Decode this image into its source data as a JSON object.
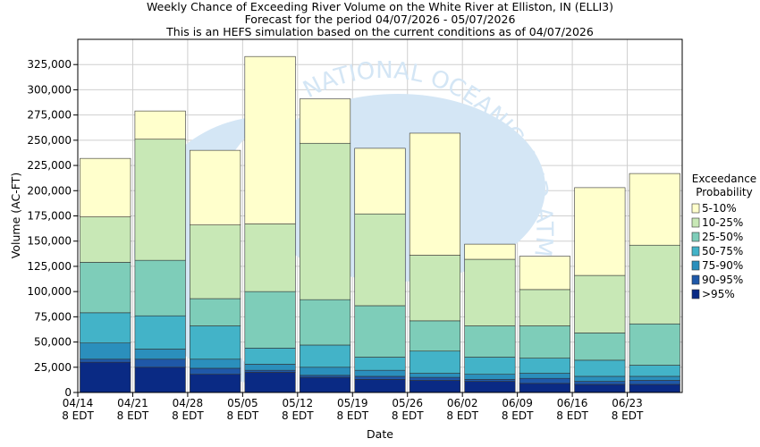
{
  "chart_data": {
    "type": "bar",
    "stacked": true,
    "title": [
      "Weekly Chance of Exceeding River Volume on the White River at Elliston, IN (ELLI3)",
      "Forecast for the period 04/07/2026 - 05/07/2026",
      "This is an HEFS simulation based on the current conditions as of 04/07/2026"
    ],
    "watermark": "NATIONAL OCEANIC AND ATMOSPHERIC ADMINISTRATION",
    "xlabel": "Date",
    "ylabel": "Volume (AC-FT)",
    "ylim": [
      0,
      350000
    ],
    "yticks": [
      0,
      25000,
      50000,
      75000,
      100000,
      125000,
      150000,
      175000,
      200000,
      225000,
      250000,
      275000,
      300000,
      325000
    ],
    "ytick_labels": [
      "0",
      "25,000",
      "50,000",
      "75,000",
      "100,000",
      "125,000",
      "150,000",
      "175,000",
      "200,000",
      "225,000",
      "250,000",
      "275,000",
      "300,000",
      "325,000"
    ],
    "xtick_labels": [
      [
        "04/14",
        "8 EDT"
      ],
      [
        "04/21",
        "8 EDT"
      ],
      [
        "04/28",
        "8 EDT"
      ],
      [
        "05/05",
        "8 EDT"
      ],
      [
        "05/12",
        "8 EDT"
      ],
      [
        "05/19",
        "8 EDT"
      ],
      [
        "05/26",
        "8 EDT"
      ],
      [
        "06/02",
        "8 EDT"
      ],
      [
        "06/09",
        "8 EDT"
      ],
      [
        "06/16",
        "8 EDT"
      ],
      [
        "06/23",
        "8 EDT"
      ]
    ],
    "grid": true,
    "legend_title": [
      "Exceedance",
      "Probability"
    ],
    "legend_position": "right",
    "bars": [
      {
        "bounds": [
          30000,
          33000,
          49000,
          79000,
          129000,
          174000,
          232000
        ]
      },
      {
        "bounds": [
          25000,
          33000,
          43000,
          76000,
          131000,
          251000,
          279000
        ]
      },
      {
        "bounds": [
          18000,
          24000,
          33000,
          66000,
          93000,
          166000,
          240000
        ]
      },
      {
        "bounds": [
          20000,
          22000,
          28000,
          44000,
          100000,
          167000,
          333000
        ]
      },
      {
        "bounds": [
          15000,
          17000,
          25000,
          47000,
          92000,
          247000,
          291000
        ]
      },
      {
        "bounds": [
          13000,
          16000,
          22000,
          35000,
          86000,
          177000,
          242000
        ]
      },
      {
        "bounds": [
          12000,
          15000,
          19000,
          41000,
          71000,
          136000,
          257000
        ]
      },
      {
        "bounds": [
          11000,
          13000,
          18000,
          35000,
          66000,
          132000,
          147000
        ]
      },
      {
        "bounds": [
          9000,
          14000,
          19000,
          34000,
          66000,
          102000,
          135000
        ]
      },
      {
        "bounds": [
          8000,
          11000,
          16000,
          32000,
          59000,
          116000,
          203000
        ]
      },
      {
        "bounds": [
          8000,
          12000,
          16000,
          27000,
          68000,
          146000,
          217000
        ]
      }
    ],
    "series": [
      {
        "name": ">95%",
        "color": "#0a2a84"
      },
      {
        "name": "90-95%",
        "color": "#1f58a8"
      },
      {
        "name": "75-90%",
        "color": "#2b8fbc"
      },
      {
        "name": "50-75%",
        "color": "#43b3c8"
      },
      {
        "name": "25-50%",
        "color": "#7ecdb9"
      },
      {
        "name": "10-25%",
        "color": "#c8e8b6"
      },
      {
        "name": "5-10%",
        "color": "#ffffcc"
      }
    ],
    "legend_order": [
      "5-10%",
      "10-25%",
      "25-50%",
      "50-75%",
      "75-90%",
      "90-95%",
      ">95%"
    ]
  }
}
